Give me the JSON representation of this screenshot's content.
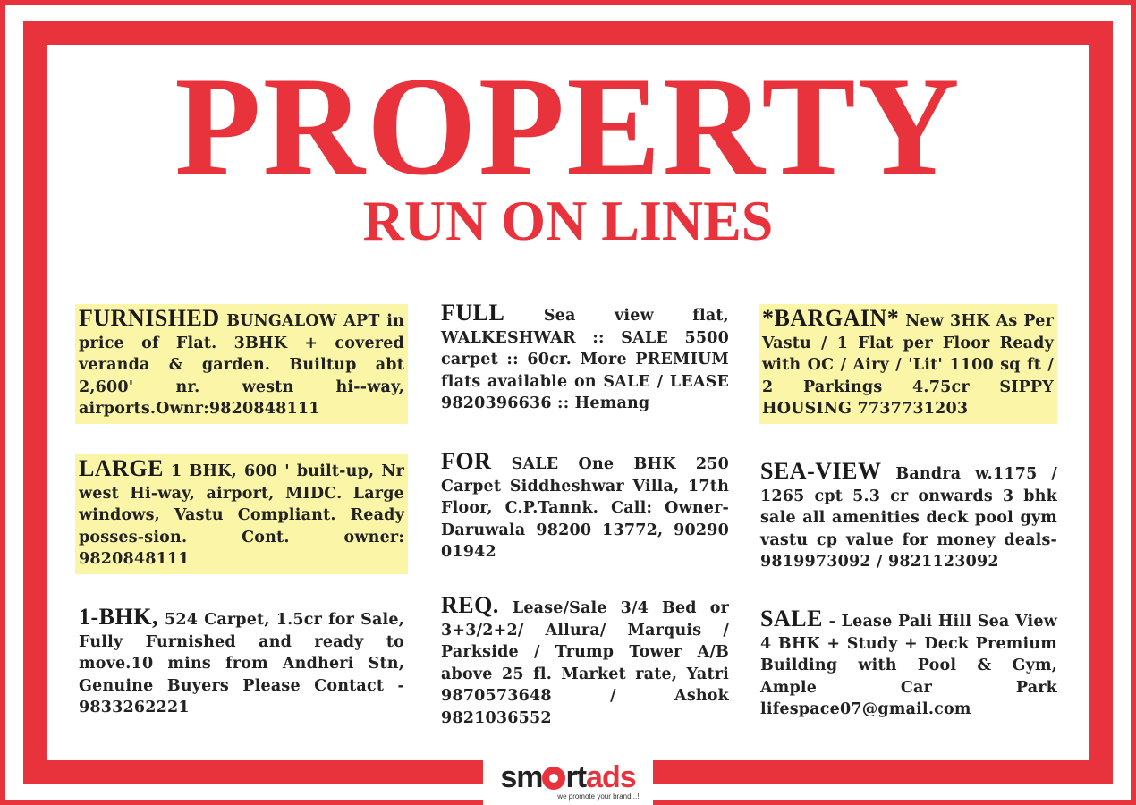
{
  "header": {
    "title": "PROPERTY",
    "subtitle": "RUN ON LINES"
  },
  "colors": {
    "accent_red": "#e8333c",
    "highlight_yellow": "#fbf5a8"
  },
  "ads": [
    {
      "heading": "FURNISHED",
      "body": "BUNGALOW APT in price of Flat. 3BHK + covered veranda & garden. Builtup abt 2,600' nr. westn hi--way, airports.Ownr:9820848111",
      "highlighted": true
    },
    {
      "heading": "LARGE",
      "body": "1 BHK, 600 ' built-up, Nr west Hi-way, airport, MIDC. Large windows, Vastu Compliant. Ready posses-sion. Cont. owner: 9820848111",
      "highlighted": true
    },
    {
      "heading": "1-BHK,",
      "body": "524 Carpet, 1.5cr for Sale, Fully Furnished and ready to move.10 mins from Andheri Stn, Genuine Buyers Please Contact - 9833262221",
      "highlighted": false
    },
    {
      "heading": "FULL",
      "body": "Sea view flat, WALKESHWAR :: SALE 5500 carpet :: 60cr. More PREMIUM flats available on SALE / LEASE 9820396636 :: Hemang",
      "highlighted": false
    },
    {
      "heading": "FOR",
      "body": "SALE One BHK 250 Carpet Siddheshwar Villa, 17th Floor, C.P.Tannk. Call: Owner-Daruwala 98200 13772, 90290 01942",
      "highlighted": false
    },
    {
      "heading": "REQ.",
      "body": "Lease/Sale 3/4 Bed or 3+3/2+2/ Allura/ Marquis / Parkside / Trump Tower A/B above 25 fl. Market rate, Yatri 9870573648 / Ashok 9821036552",
      "highlighted": false
    },
    {
      "heading": "*BARGAIN*",
      "body": "New 3HK As Per Vastu / 1 Flat per Floor Ready with OC / Airy / 'Lit' 1100 sq ft / 2 Parkings 4.75cr SIPPY HOUSING 7737731203",
      "highlighted": true
    },
    {
      "heading": "SEA-VIEW",
      "body": "Bandra w.1175 / 1265 cpt 5.3 cr onwards 3 bhk sale all amenities deck pool gym vastu cp value for money deals- 9819973092 / 9821123092",
      "highlighted": false
    },
    {
      "heading": "SALE",
      "body": "- Lease Pali Hill Sea View 4 BHK + Study + Deck Premium Building with Pool & Gym, Ample Car Park lifespace07@gmail.com",
      "highlighted": false
    }
  ],
  "logo": {
    "text_part1": "sm",
    "text_part2": "rt",
    "text_part3": "ads",
    "tagline": "we promote your brand...!!",
    "icon": "film-reel-icon"
  }
}
